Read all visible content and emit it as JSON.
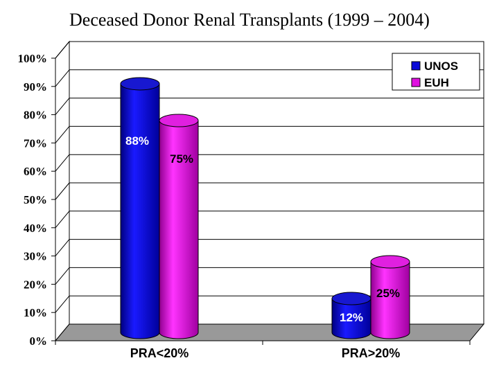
{
  "title": "Deceased Donor Renal Transplants (1999 – 2004)",
  "chart_data": {
    "type": "bar",
    "title": "Deceased Donor Renal Transplants (1999 – 2004)",
    "categories": [
      "PRA<20%",
      "PRA>20%"
    ],
    "series": [
      {
        "name": "UNOS",
        "values": [
          88,
          12
        ],
        "labels": [
          "88%",
          "12%"
        ],
        "color": "#0a0ad8"
      },
      {
        "name": "EUH",
        "values": [
          75,
          25
        ],
        "labels": [
          "75%",
          "25%"
        ],
        "color": "#e010e0"
      }
    ],
    "ylim": [
      0,
      100
    ],
    "yticks": [
      "0%",
      "10%",
      "20%",
      "30%",
      "40%",
      "50%",
      "60%",
      "70%",
      "80%",
      "90%",
      "100%"
    ],
    "grid": true,
    "legend": "top-right",
    "xlabel": "",
    "ylabel": ""
  }
}
